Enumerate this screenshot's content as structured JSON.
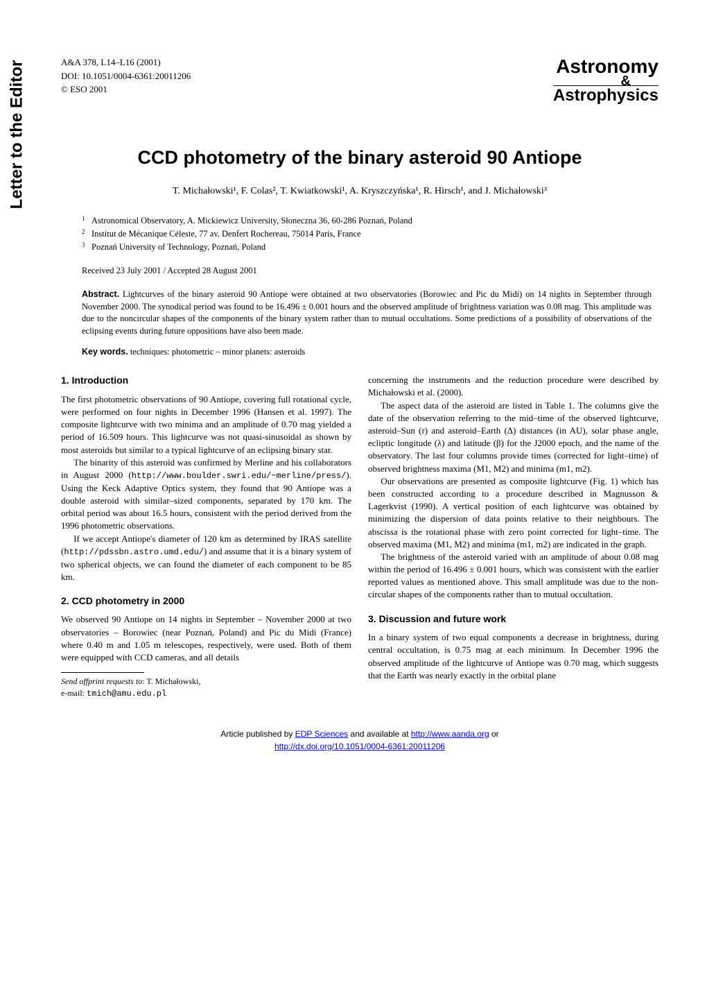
{
  "sidebar": {
    "text": "Letter to the Editor"
  },
  "header": {
    "citation": "A&A 378, L14–L16 (2001)",
    "doi": "DOI: 10.1051/0004-6361:20011206",
    "copyright": "© ESO 2001",
    "journal_line1": "Astronomy",
    "journal_amp": "&",
    "journal_line2": "Astrophysics"
  },
  "title": "CCD photometry of the binary asteroid 90 Antiope",
  "authors": "T. Michałowski¹, F. Colas², T. Kwiatkowski¹, A. Kryszczyńska¹, R. Hirsch¹, and J. Michałowski³",
  "affiliations": [
    {
      "num": "1",
      "text": "Astronomical Observatory, A. Mickiewicz University, Słoneczna 36, 60-286 Poznań, Poland"
    },
    {
      "num": "2",
      "text": "Institut de Mécanique Céleste, 77 av. Denfert Rochereau, 75014 Paris, France"
    },
    {
      "num": "3",
      "text": "Poznań University of Technology, Poznań, Poland"
    }
  ],
  "dates": "Received 23 July 2001 / Accepted 28 August 2001",
  "abstract": {
    "label": "Abstract.",
    "text": "Lightcurves of the binary asteroid 90 Antiope were obtained at two observatories (Borowiec and Pic du Midi) on 14 nights in September through November 2000. The synodical period was found to be 16.496 ± 0.001 hours and the observed amplitude of brightness variation was 0.08 mag. This amplitude was due to the noncircular shapes of the components of the binary system rather than to mutual occultations. Some predictions of a possibility of observations of the eclipsing events during future oppositions have also been made."
  },
  "keywords": {
    "label": "Key words.",
    "text": "techniques: photometric – minor planets: asteroids"
  },
  "sections": {
    "intro_heading": "1. Introduction",
    "intro_p1": "The first photometric observations of 90 Antiope, covering full rotational cycle, were performed on four nights in December 1996 (Hansen et al. 1997). The composite lightcurve with two minima and an amplitude of 0.70 mag yielded a period of 16.509 hours. This lightcurve was not quasi-sinusoidal as shown by most asteroids but similar to a typical lightcurve of an eclipsing binary star.",
    "intro_p2a": "The binarity of this asteroid was confirmed by Merline and his collaborators in August 2000 (",
    "intro_url1": "http://www.boulder.swri.edu/~merline/press/",
    "intro_p2b": "). Using the Keck Adaptive Optics system, they found that 90 Antiope was a double asteroid with similar–sized components, separated by 170 km. The orbital period was about 16.5 hours, consistent with the period derived from the 1996 photometric observations.",
    "intro_p3a": "If we accept Antiope's diameter of 120 km as determined by IRAS satellite (",
    "intro_url2": "http://pdssbn.astro.umd.edu/",
    "intro_p3b": ") and assume that it is a binary system of two spherical objects, we can found the diameter of each component to be 85 km.",
    "ccd_heading": "2. CCD photometry in 2000",
    "ccd_p1": "We observed 90 Antiope on 14 nights in September – November 2000 at two observatories – Borowiec (near Poznań, Poland) and Pic du Midi (France) where 0.40 m and 1.05 m telescopes, respectively, were used. Both of them were equipped with CCD cameras, and all details",
    "col2_p1": "concerning the instruments and the reduction procedure were described by Michałowski et al. (2000).",
    "col2_p2": "The aspect data of the asteroid are listed in Table 1. The columns give the date of the observation referring to the mid–time of the observed lightcurve, asteroid–Sun (r) and asteroid–Earth (Δ) distances (in AU), solar phase angle, ecliptic longitude (λ) and latitude (β) for the J2000 epoch, and the name of the observatory. The last four columns provide times (corrected for light–time) of observed brightness maxima (M1, M2) and minima (m1, m2).",
    "col2_p3": "Our observations are presented as composite lightcurve (Fig. 1) which has been constructed according to a procedure described in Magnusson & Lagerkvist (1990). A vertical position of each lightcurve was obtained by minimizing the dispersion of data points relative to their neighbours. The abscissa is the rotational phase with zero point corrected for light–time. The observed maxima (M1, M2) and minima (m1, m2) are indicated in the graph.",
    "col2_p4": "The brightness of the asteroid varied with an amplitude of about 0.08 mag within the period of 16.496 ± 0.001 hours, which was consistent with the earlier reported values as mentioned above. This small amplitude was due to the non-circular shapes of the components rather than to mutual occultation.",
    "discussion_heading": "3. Discussion and future work",
    "discussion_p1": "In a binary system of two equal components a decrease in brightness, during central occultation, is 0.75 mag at each minimum. In December 1996 the observed amplitude of the lightcurve of Antiope was 0.70 mag, which suggests that the Earth was nearly exactly in the orbital plane"
  },
  "footnote": {
    "label": "Send offprint requests to",
    "name": ": T. Michałowski,",
    "email_label": "e-mail: ",
    "email": "tmich@amu.edu.pl"
  },
  "footer": {
    "line1a": "Article published by ",
    "link1": "EDP Sciences",
    "line1b": " and available at ",
    "link2": "http://www.aanda.org",
    "line1c": " or",
    "link3": "http://dx.doi.org/10.1051/0004-6361:20011206"
  }
}
